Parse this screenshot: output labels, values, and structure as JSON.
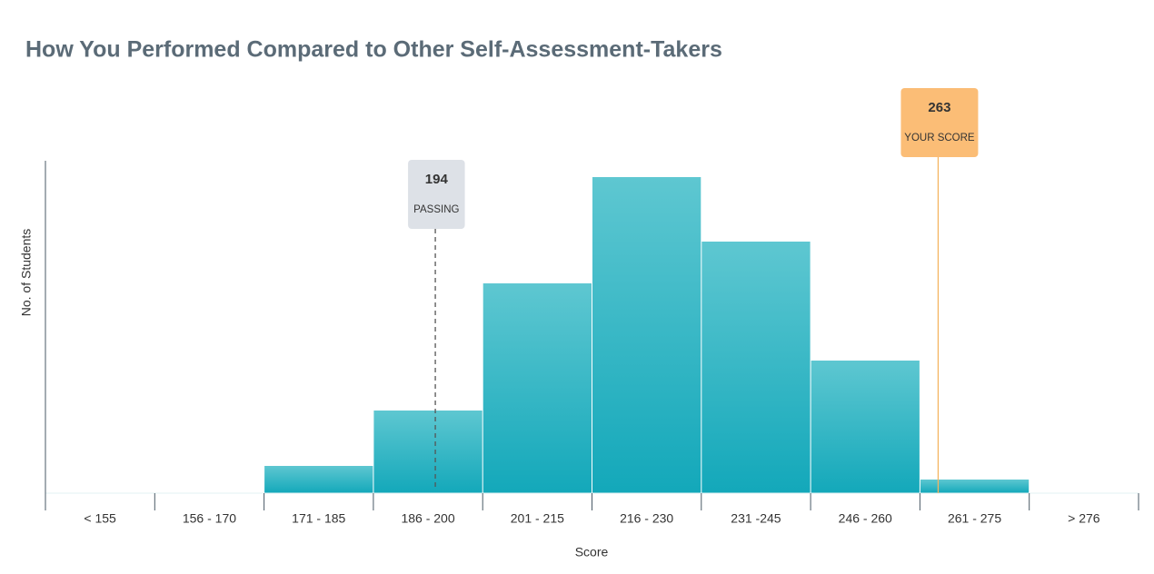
{
  "chart_data": {
    "type": "bar",
    "title": "How You Performed Compared to Other Self-Assessment-Takers",
    "x_label": "Score",
    "y_label": "No. of Students",
    "categories": [
      "< 155",
      "156 - 170",
      "171 - 185",
      "186 - 200",
      "201 - 215",
      "216 - 230",
      "231 -245",
      "246 - 260",
      "261 - 275",
      "> 276"
    ],
    "values": [
      0,
      0,
      30,
      91,
      231,
      348,
      277,
      146,
      15,
      0
    ],
    "color": "#13a8ba",
    "ylim": [
      0,
      366
    ],
    "annotations": [
      {
        "value": 194,
        "label": "PASSING",
        "color": "#dde1e7",
        "style": "dashed"
      },
      {
        "value": 263,
        "label": "YOUR SCORE",
        "color": "#fbbd76",
        "style": "solid"
      }
    ]
  }
}
